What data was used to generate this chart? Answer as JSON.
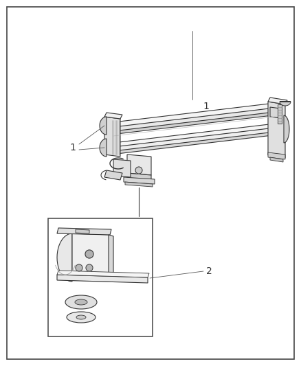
{
  "fig_width": 4.38,
  "fig_height": 5.33,
  "dpi": 100,
  "bg_color": "#ffffff",
  "border_color": "#444444",
  "border_linewidth": 1.2,
  "line_color": "#333333",
  "fill_light": "#f0f0f0",
  "fill_mid": "#d8d8d8",
  "fill_dark": "#aaaaaa",
  "label1": "1",
  "label2": "2"
}
